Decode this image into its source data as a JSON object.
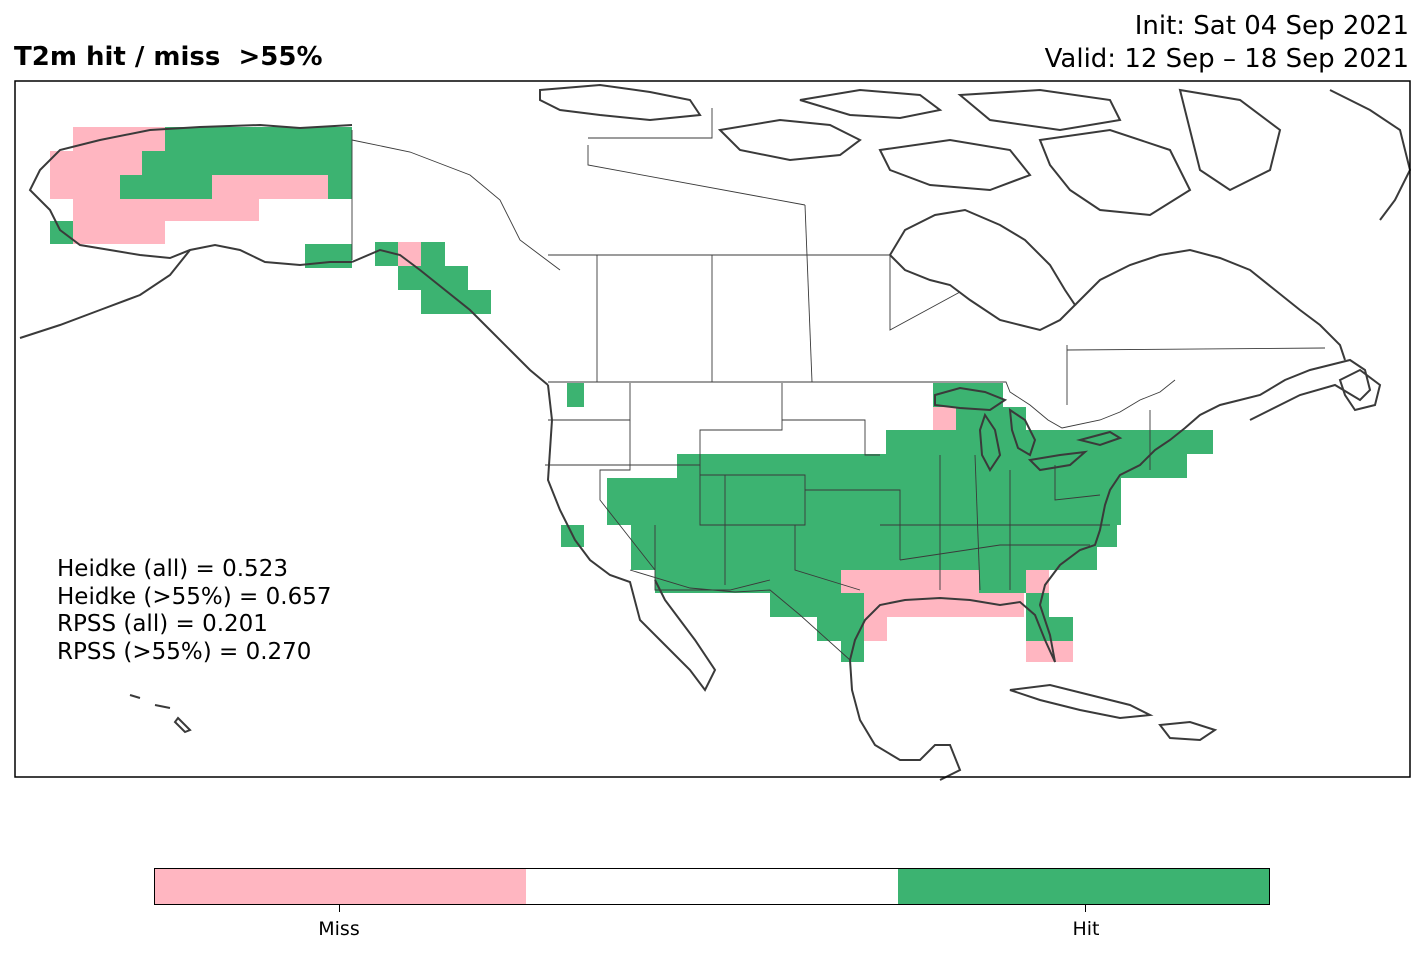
{
  "title": "T2m hit / miss  >55%",
  "init": "Init: Sat 04 Sep 2021",
  "valid": "Valid: 12 Sep – 18 Sep 2021",
  "stats": [
    "Heidke (all) = 0.523",
    "Heidke (>55%) = 0.657",
    "RPSS (all) = 0.201",
    "RPSS (>55%) = 0.270"
  ],
  "legend": {
    "miss_label": "Miss",
    "hit_label": "Hit",
    "colors": {
      "miss": "#ffb6c1",
      "neutral": "#ffffff",
      "hit": "#3cb371"
    }
  },
  "colors": {
    "miss": "#ffb6c1",
    "hit": "#3cb371",
    "coast": "#3a3a3a"
  }
}
